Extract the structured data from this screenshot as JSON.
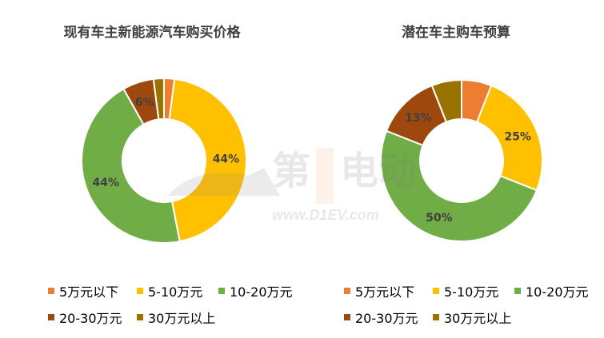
{
  "chart_data": [
    {
      "type": "donut",
      "title": "现有车主新能源汽车购买价格",
      "categories": [
        "5万元以下",
        "5-10万元",
        "10-20万元",
        "20-30万元",
        "30万元以上"
      ],
      "values": [
        2,
        44,
        44,
        6,
        2
      ],
      "data_labels": [
        "",
        "44%",
        "44%",
        "6%",
        ""
      ],
      "legend": "bottom"
    },
    {
      "type": "donut",
      "title": "潜在车主购车预算",
      "categories": [
        "5万元以下",
        "5-10万元",
        "10-20万元",
        "20-30万元",
        "30万元以上"
      ],
      "values": [
        6,
        25,
        50,
        13,
        6
      ],
      "data_labels": [
        "",
        "25%",
        "50%",
        "13%",
        ""
      ],
      "legend": "bottom"
    }
  ],
  "colors": [
    "#ED7D31",
    "#FFC000",
    "#70AD47",
    "#9E480E",
    "#997300"
  ],
  "watermark": {
    "brand": "第1电动",
    "site": "www.D1EV.com"
  }
}
